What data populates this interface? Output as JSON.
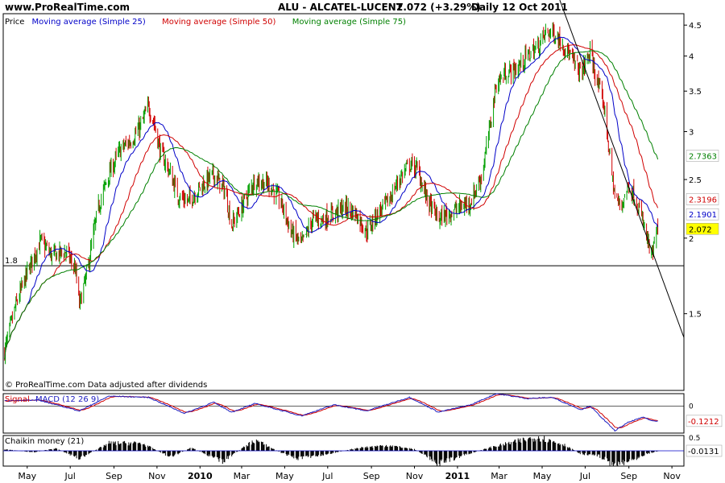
{
  "header": {
    "site": "www.ProRealTime.com",
    "symbol_line": "ALU - ALCATEL-LUCENT",
    "last_price": "2.072 (+3.29%)",
    "period_date": "Daily  12 Oct 2011"
  },
  "colors": {
    "price_up": "#00a000",
    "price_down": "#d00000",
    "sma25": "#0000c8",
    "sma50": "#d00000",
    "sma75": "#008000",
    "trendline": "#000000",
    "macd": "#2020c0",
    "signal": "#d00000",
    "chaikin": "#000000"
  },
  "chart_data": [
    {
      "type": "line",
      "name": "price-panel",
      "title": "ALU - ALCATEL-LUCENT",
      "legend": [
        {
          "label": "Price",
          "color": "#000000"
        },
        {
          "label": "Moving average (Simple 25)",
          "color": "#0000c8"
        },
        {
          "label": "Moving average (Simple 50)",
          "color": "#d00000"
        },
        {
          "label": "Moving average (Simple 75)",
          "color": "#008000"
        }
      ],
      "legend_position": "top-left",
      "y_scale": "log",
      "ylim": [
        1.12,
        4.7
      ],
      "y_ticks": [
        "1.5",
        "2",
        "2.5",
        "3",
        "3.5",
        "4",
        "4.5"
      ],
      "y_tick_values": [
        1.5,
        2,
        2.5,
        3,
        3.5,
        4,
        4.5
      ],
      "x_ticks": [
        "May",
        "Jul",
        "Sep",
        "Nov",
        "2010",
        "Mar",
        "May",
        "Jul",
        "Sep",
        "Nov",
        "2011",
        "Mar",
        "May",
        "Jul",
        "Sep",
        "Nov"
      ],
      "x_tick_dates": [
        "2009-05-01",
        "2009-07-01",
        "2009-09-01",
        "2009-11-01",
        "2010-01-01",
        "2010-03-01",
        "2010-05-01",
        "2010-07-01",
        "2010-09-01",
        "2010-11-01",
        "2011-01-01",
        "2011-03-01",
        "2011-05-01",
        "2011-07-01",
        "2011-09-01",
        "2011-11-01"
      ],
      "x_range": [
        "2009-03-28",
        "2011-11-18"
      ],
      "horizontal_line": {
        "label": "1.8",
        "value": 1.8
      },
      "trendline": {
        "start": [
          "2011-05-26",
          4.95
        ],
        "end": [
          "2011-11-18",
          1.37
        ]
      },
      "price_points": [
        [
          "2009-03-30",
          1.3
        ],
        [
          "2009-04-15",
          1.55
        ],
        [
          "2009-05-01",
          1.75
        ],
        [
          "2009-05-20",
          1.98
        ],
        [
          "2009-06-05",
          1.87
        ],
        [
          "2009-06-25",
          1.9
        ],
        [
          "2009-07-08",
          1.78
        ],
        [
          "2009-07-14",
          1.55
        ],
        [
          "2009-07-25",
          1.75
        ],
        [
          "2009-08-10",
          2.25
        ],
        [
          "2009-08-25",
          2.55
        ],
        [
          "2009-09-10",
          2.8
        ],
        [
          "2009-09-25",
          2.9
        ],
        [
          "2009-10-08",
          3.05
        ],
        [
          "2009-10-20",
          3.3
        ],
        [
          "2009-10-28",
          3.1
        ],
        [
          "2009-11-05",
          2.8
        ],
        [
          "2009-11-20",
          2.55
        ],
        [
          "2009-12-01",
          2.35
        ],
        [
          "2009-12-15",
          2.3
        ],
        [
          "2010-01-05",
          2.45
        ],
        [
          "2010-01-20",
          2.55
        ],
        [
          "2010-02-05",
          2.4
        ],
        [
          "2010-02-15",
          2.1
        ],
        [
          "2010-03-01",
          2.25
        ],
        [
          "2010-03-20",
          2.5
        ],
        [
          "2010-04-10",
          2.45
        ],
        [
          "2010-04-25",
          2.3
        ],
        [
          "2010-05-10",
          2.05
        ],
        [
          "2010-05-25",
          1.95
        ],
        [
          "2010-06-10",
          2.15
        ],
        [
          "2010-06-25",
          2.15
        ],
        [
          "2010-07-10",
          2.2
        ],
        [
          "2010-07-25",
          2.25
        ],
        [
          "2010-08-10",
          2.2
        ],
        [
          "2010-08-25",
          2.05
        ],
        [
          "2010-09-10",
          2.2
        ],
        [
          "2010-09-25",
          2.3
        ],
        [
          "2010-10-10",
          2.5
        ],
        [
          "2010-10-25",
          2.65
        ],
        [
          "2010-11-05",
          2.6
        ],
        [
          "2010-11-20",
          2.3
        ],
        [
          "2010-12-05",
          2.15
        ],
        [
          "2010-12-20",
          2.2
        ],
        [
          "2011-01-05",
          2.25
        ],
        [
          "2011-01-20",
          2.3
        ],
        [
          "2011-02-05",
          2.55
        ],
        [
          "2011-02-15",
          3.0
        ],
        [
          "2011-02-25",
          3.6
        ],
        [
          "2011-03-10",
          3.75
        ],
        [
          "2011-03-25",
          3.8
        ],
        [
          "2011-04-10",
          4.0
        ],
        [
          "2011-04-25",
          4.15
        ],
        [
          "2011-05-05",
          4.35
        ],
        [
          "2011-05-15",
          4.4
        ],
        [
          "2011-05-30",
          4.2
        ],
        [
          "2011-06-15",
          3.9
        ],
        [
          "2011-06-25",
          3.75
        ],
        [
          "2011-07-08",
          4.05
        ],
        [
          "2011-07-20",
          3.55
        ],
        [
          "2011-07-28",
          3.3
        ],
        [
          "2011-08-05",
          2.7
        ],
        [
          "2011-08-12",
          2.35
        ],
        [
          "2011-08-20",
          2.25
        ],
        [
          "2011-09-01",
          2.45
        ],
        [
          "2011-09-12",
          2.3
        ],
        [
          "2011-09-22",
          2.1
        ],
        [
          "2011-10-03",
          1.85
        ],
        [
          "2011-10-12",
          2.072
        ]
      ],
      "series": [
        {
          "name": "Moving average (Simple 25)",
          "last_value": "2.1901"
        },
        {
          "name": "Moving average (Simple 50)",
          "last_value": "2.3196"
        },
        {
          "name": "Moving average (Simple 75)",
          "last_value": "2.7363"
        }
      ],
      "last_price_label": "2.072",
      "annotation": "© ProRealTime.com  Data adjusted after dividends"
    },
    {
      "type": "line",
      "name": "macd-panel",
      "legend": [
        {
          "label": "Signal",
          "color": "#d00000"
        },
        {
          "label": "MACD (12 26 9)",
          "color": "#2020c0"
        }
      ],
      "y_ticks": [
        "0"
      ],
      "y_tick_values": [
        0
      ],
      "ylim": [
        -0.22,
        0.1
      ],
      "last_value_label": "-0.1212",
      "macd_points": [
        [
          "2009-03-30",
          0.04
        ],
        [
          "2009-05-15",
          0.05
        ],
        [
          "2009-07-14",
          -0.04
        ],
        [
          "2009-08-25",
          0.08
        ],
        [
          "2009-10-20",
          0.07
        ],
        [
          "2009-12-10",
          -0.06
        ],
        [
          "2010-01-20",
          0.03
        ],
        [
          "2010-02-15",
          -0.05
        ],
        [
          "2010-03-20",
          0.02
        ],
        [
          "2010-05-25",
          -0.08
        ],
        [
          "2010-07-10",
          0.01
        ],
        [
          "2010-08-25",
          -0.04
        ],
        [
          "2010-10-25",
          0.07
        ],
        [
          "2010-12-05",
          -0.05
        ],
        [
          "2011-01-20",
          0.01
        ],
        [
          "2011-02-25",
          0.1
        ],
        [
          "2011-04-10",
          0.06
        ],
        [
          "2011-05-15",
          0.07
        ],
        [
          "2011-06-25",
          -0.03
        ],
        [
          "2011-07-08",
          0.0
        ],
        [
          "2011-08-12",
          -0.2
        ],
        [
          "2011-09-01",
          -0.13
        ],
        [
          "2011-09-22",
          -0.09
        ],
        [
          "2011-10-03",
          -0.12
        ],
        [
          "2011-10-12",
          -0.1212
        ]
      ]
    },
    {
      "type": "area",
      "name": "chaikin-panel",
      "legend": [
        {
          "label": "Chaikin money (21)",
          "color": "#000000"
        }
      ],
      "y_ticks": [
        "0.5"
      ],
      "y_tick_values": [
        0.5
      ],
      "ylim": [
        -0.5,
        0.5
      ],
      "zero_line": true,
      "last_value_label": "-0.0131",
      "cmf_points": [
        [
          "2009-03-30",
          0.05
        ],
        [
          "2009-05-10",
          -0.05
        ],
        [
          "2009-06-10",
          0.08
        ],
        [
          "2009-07-15",
          -0.25
        ],
        [
          "2009-08-25",
          0.25
        ],
        [
          "2009-10-10",
          0.25
        ],
        [
          "2009-11-20",
          -0.2
        ],
        [
          "2009-12-20",
          0.1
        ],
        [
          "2010-02-01",
          -0.35
        ],
        [
          "2010-03-20",
          0.35
        ],
        [
          "2010-04-25",
          -0.05
        ],
        [
          "2010-05-20",
          -0.25
        ],
        [
          "2010-07-01",
          -0.1
        ],
        [
          "2010-08-15",
          0.1
        ],
        [
          "2010-09-25",
          0.18
        ],
        [
          "2010-11-01",
          0.05
        ],
        [
          "2010-12-05",
          -0.4
        ],
        [
          "2011-01-10",
          -0.15
        ],
        [
          "2011-02-15",
          0.1
        ],
        [
          "2011-03-25",
          0.3
        ],
        [
          "2011-04-25",
          0.45
        ],
        [
          "2011-06-01",
          0.2
        ],
        [
          "2011-06-25",
          -0.1
        ],
        [
          "2011-07-20",
          -0.15
        ],
        [
          "2011-08-10",
          -0.45
        ],
        [
          "2011-09-05",
          -0.3
        ],
        [
          "2011-09-25",
          -0.1
        ],
        [
          "2011-10-12",
          -0.0131
        ]
      ]
    }
  ]
}
